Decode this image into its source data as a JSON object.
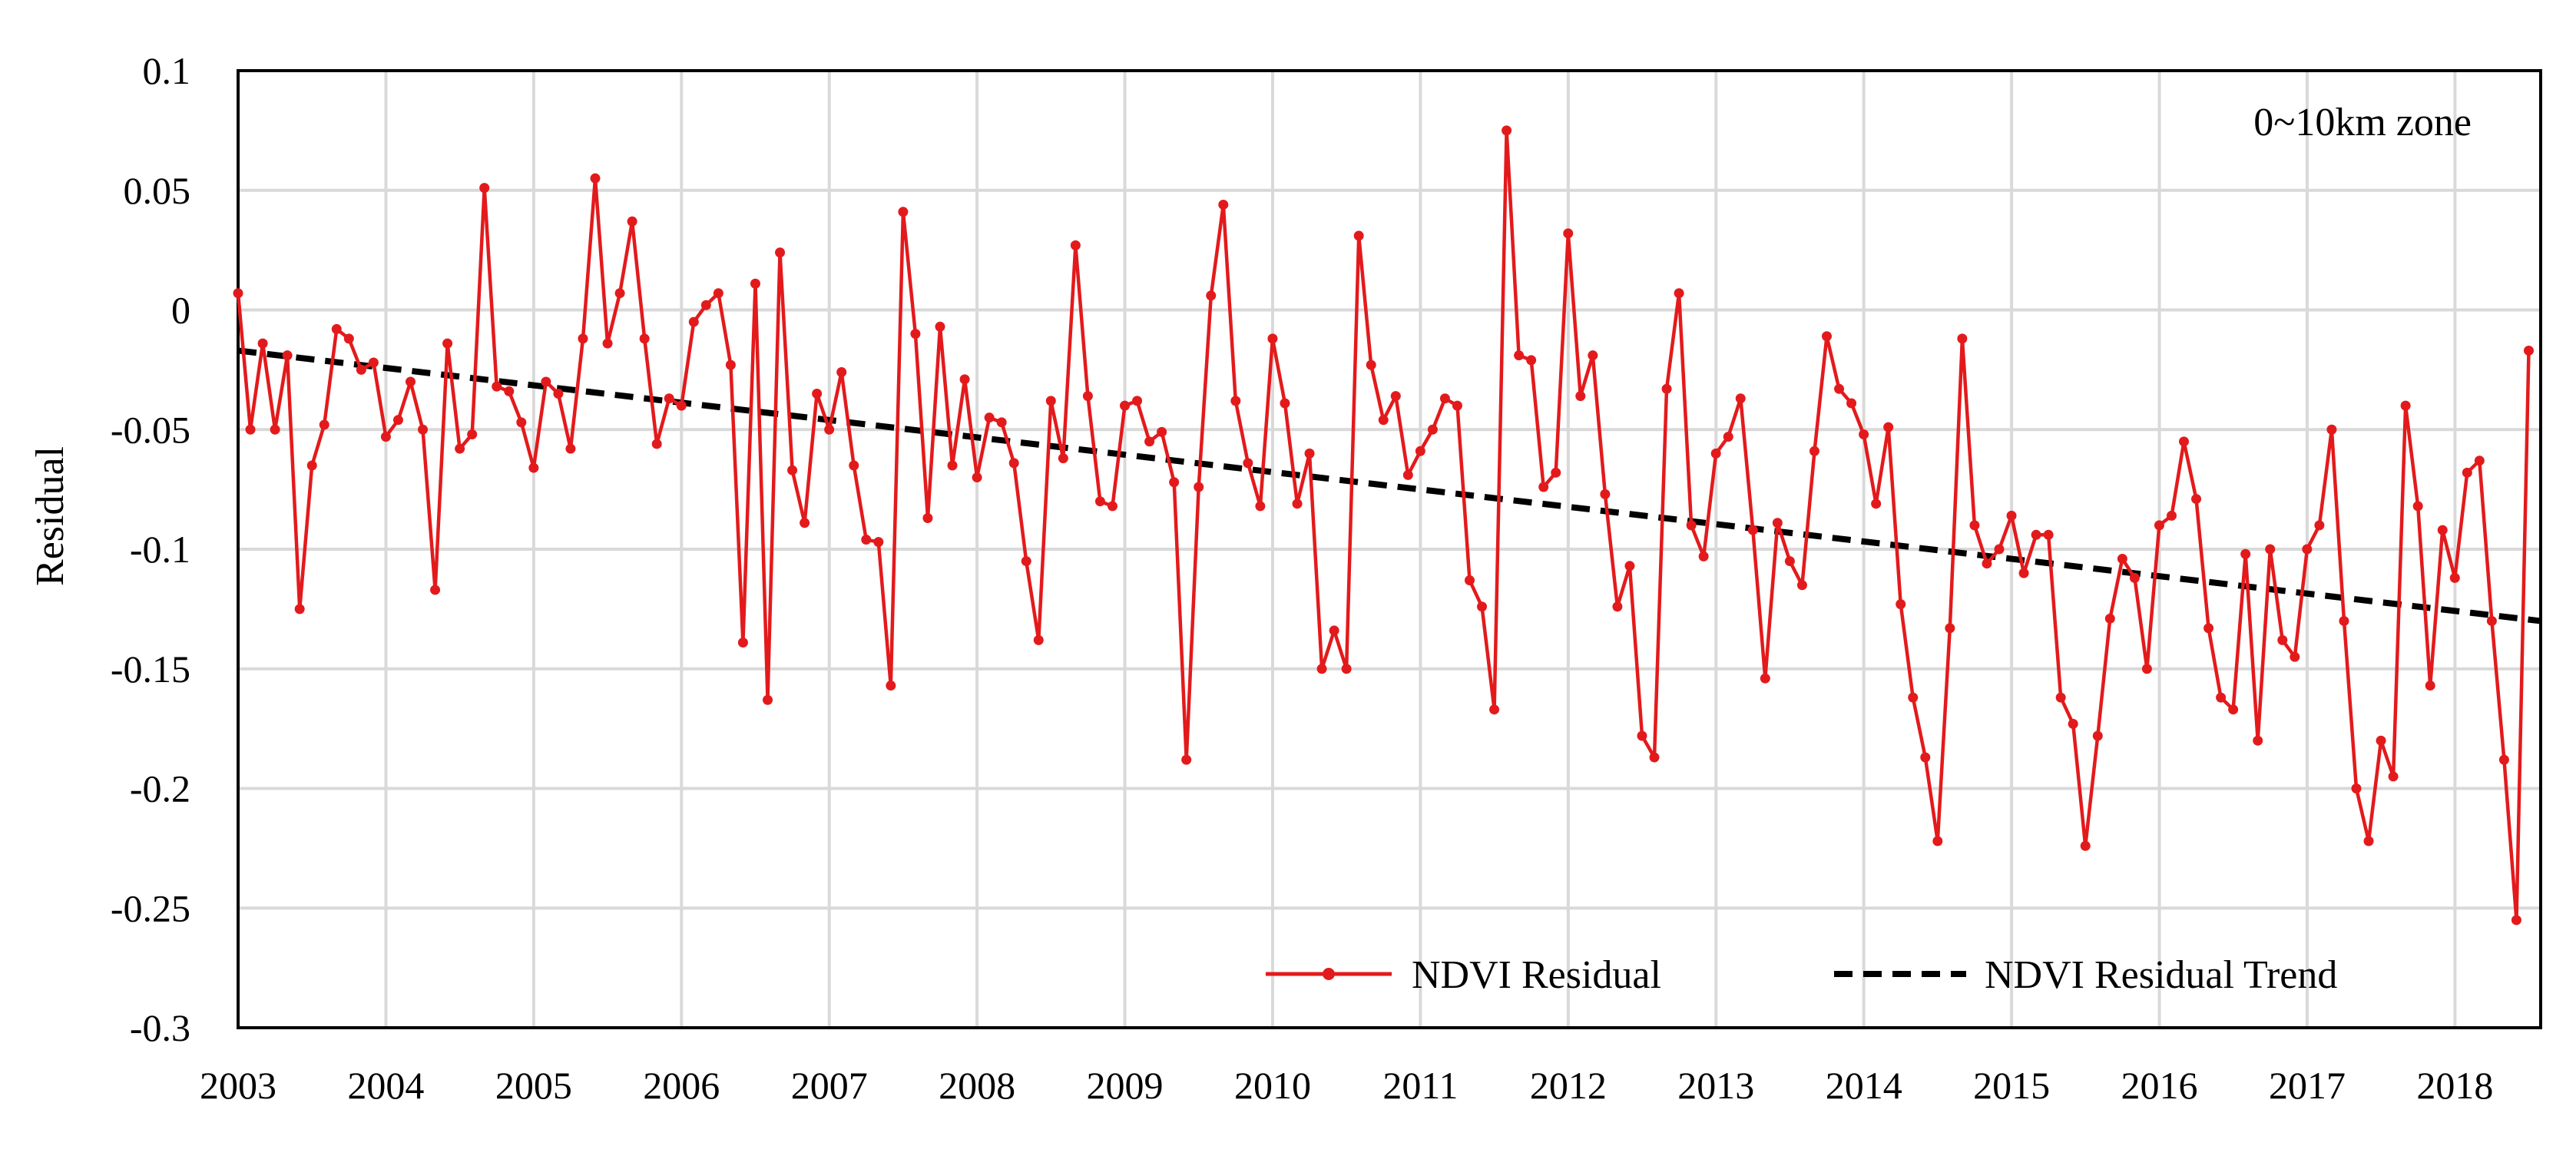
{
  "chart_data": {
    "type": "line",
    "title": "",
    "annotation": "0~10km zone",
    "xlabel": "",
    "ylabel": "Residual",
    "xlim": [
      2003,
      2018.58
    ],
    "ylim": [
      -0.3,
      0.1
    ],
    "grid": true,
    "legend_position": "bottom-right",
    "x_tick_labels": [
      "2003",
      "2004",
      "2005",
      "2006",
      "2007",
      "2008",
      "2009",
      "2010",
      "2011",
      "2012",
      "2013",
      "2014",
      "2015",
      "2016",
      "2017",
      "2018"
    ],
    "y_tick_labels": [
      "0.1",
      "0.05",
      "0",
      "-0.05",
      "-0.1",
      "-0.15",
      "-0.2",
      "-0.25",
      "-0.3"
    ],
    "y_ticks": [
      0.1,
      0.05,
      0,
      -0.05,
      -0.1,
      -0.15,
      -0.2,
      -0.25,
      -0.3
    ],
    "x_start": 2003,
    "x_step": 0.08333,
    "series": [
      {
        "name": "NDVI Residual",
        "style": "line-marker",
        "color": "#e31a1c",
        "values": [
          0.007,
          -0.05,
          -0.014,
          -0.05,
          -0.019,
          -0.125,
          -0.065,
          -0.048,
          -0.008,
          -0.012,
          -0.025,
          -0.022,
          -0.053,
          -0.046,
          -0.03,
          -0.05,
          -0.117,
          -0.014,
          -0.058,
          -0.052,
          0.051,
          -0.032,
          -0.034,
          -0.047,
          -0.066,
          -0.03,
          -0.035,
          -0.058,
          -0.012,
          0.055,
          -0.014,
          0.007,
          0.037,
          -0.012,
          -0.056,
          -0.037,
          -0.04,
          -0.005,
          0.002,
          0.007,
          -0.023,
          -0.139,
          0.011,
          -0.163,
          0.024,
          -0.067,
          -0.089,
          -0.035,
          -0.05,
          -0.026,
          -0.065,
          -0.096,
          -0.097,
          -0.157,
          0.041,
          -0.01,
          -0.087,
          -0.007,
          -0.065,
          -0.029,
          -0.07,
          -0.045,
          -0.047,
          -0.064,
          -0.105,
          -0.138,
          -0.038,
          -0.062,
          0.027,
          -0.036,
          -0.08,
          -0.082,
          -0.04,
          -0.038,
          -0.055,
          -0.051,
          -0.072,
          -0.188,
          -0.074,
          0.006,
          0.044,
          -0.038,
          -0.064,
          -0.082,
          -0.012,
          -0.039,
          -0.081,
          -0.06,
          -0.15,
          -0.134,
          -0.15,
          0.031,
          -0.023,
          -0.046,
          -0.036,
          -0.069,
          -0.059,
          -0.05,
          -0.037,
          -0.04,
          -0.113,
          -0.124,
          -0.167,
          0.075,
          -0.019,
          -0.021,
          -0.074,
          -0.068,
          0.032,
          -0.036,
          -0.019,
          -0.077,
          -0.124,
          -0.107,
          -0.178,
          -0.187,
          -0.033,
          0.007,
          -0.09,
          -0.103,
          -0.06,
          -0.053,
          -0.037,
          -0.092,
          -0.154,
          -0.089,
          -0.105,
          -0.115,
          -0.059,
          -0.011,
          -0.033,
          -0.039,
          -0.052,
          -0.081,
          -0.049,
          -0.123,
          -0.162,
          -0.187,
          -0.222,
          -0.133,
          -0.012,
          -0.09,
          -0.106,
          -0.1,
          -0.086,
          -0.11,
          -0.094,
          -0.094,
          -0.162,
          -0.173,
          -0.224,
          -0.178,
          -0.129,
          -0.104,
          -0.112,
          -0.15,
          -0.09,
          -0.086,
          -0.055,
          -0.079,
          -0.133,
          -0.162,
          -0.167,
          -0.102,
          -0.18,
          -0.1,
          -0.138,
          -0.145,
          -0.1,
          -0.09,
          -0.05,
          -0.13,
          -0.2,
          -0.222,
          -0.18,
          -0.195,
          -0.04,
          -0.082,
          -0.157,
          -0.092,
          -0.112,
          -0.068,
          -0.063,
          -0.13,
          -0.188,
          -0.255,
          -0.017
        ]
      },
      {
        "name": "NDVI Residual Trend",
        "style": "dashed",
        "color": "#000000",
        "x": [
          2003,
          2018.58
        ],
        "values": [
          -0.017,
          -0.13
        ]
      }
    ]
  }
}
